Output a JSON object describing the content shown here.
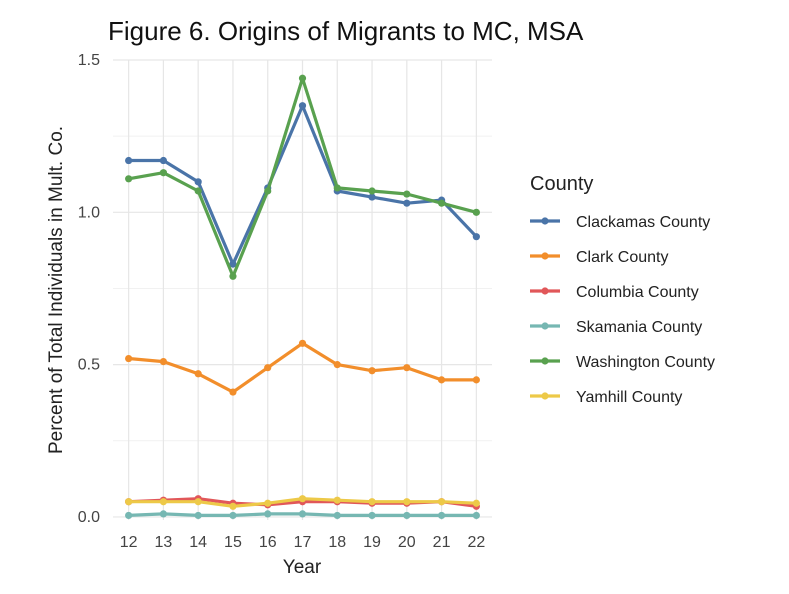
{
  "chart_data": {
    "type": "line",
    "title": "Figure 6. Origins of Migrants to MC, MSA",
    "xlabel": "Year",
    "ylabel": "Percent of Total Individuals in Mult. Co.",
    "x": [
      12,
      13,
      14,
      15,
      16,
      17,
      18,
      19,
      20,
      21,
      22
    ],
    "x_tick_labels": [
      "12",
      "13",
      "14",
      "15",
      "16",
      "17",
      "18",
      "19",
      "20",
      "21",
      "22"
    ],
    "ylim": [
      -0.01,
      1.5
    ],
    "y_ticks": [
      0.0,
      0.5,
      1.0,
      1.5
    ],
    "y_tick_labels": [
      "0.0",
      "0.5",
      "1.0",
      "1.5"
    ],
    "grid": true,
    "legend_title": "County",
    "legend_position": "right",
    "series": [
      {
        "name": "Clackamas County",
        "color": "#4a74a8",
        "values": [
          1.17,
          1.17,
          1.1,
          0.83,
          1.08,
          1.35,
          1.07,
          1.05,
          1.03,
          1.04,
          0.92
        ]
      },
      {
        "name": "Clark County",
        "color": "#f28e2b",
        "values": [
          0.52,
          0.51,
          0.47,
          0.41,
          0.49,
          0.57,
          0.5,
          0.48,
          0.49,
          0.45,
          0.45
        ]
      },
      {
        "name": "Columbia County",
        "color": "#e15759",
        "values": [
          0.05,
          0.055,
          0.06,
          0.045,
          0.04,
          0.05,
          0.05,
          0.045,
          0.045,
          0.05,
          0.035
        ]
      },
      {
        "name": "Skamania County",
        "color": "#76b7b2",
        "values": [
          0.005,
          0.01,
          0.005,
          0.005,
          0.01,
          0.01,
          0.005,
          0.005,
          0.005,
          0.005,
          0.005
        ]
      },
      {
        "name": "Washington County",
        "color": "#59a14f",
        "values": [
          1.11,
          1.13,
          1.07,
          0.79,
          1.07,
          1.44,
          1.08,
          1.07,
          1.06,
          1.03,
          1.0
        ]
      },
      {
        "name": "Yamhill County",
        "color": "#edc948",
        "values": [
          0.05,
          0.05,
          0.05,
          0.035,
          0.045,
          0.06,
          0.055,
          0.05,
          0.05,
          0.05,
          0.045
        ]
      }
    ]
  }
}
